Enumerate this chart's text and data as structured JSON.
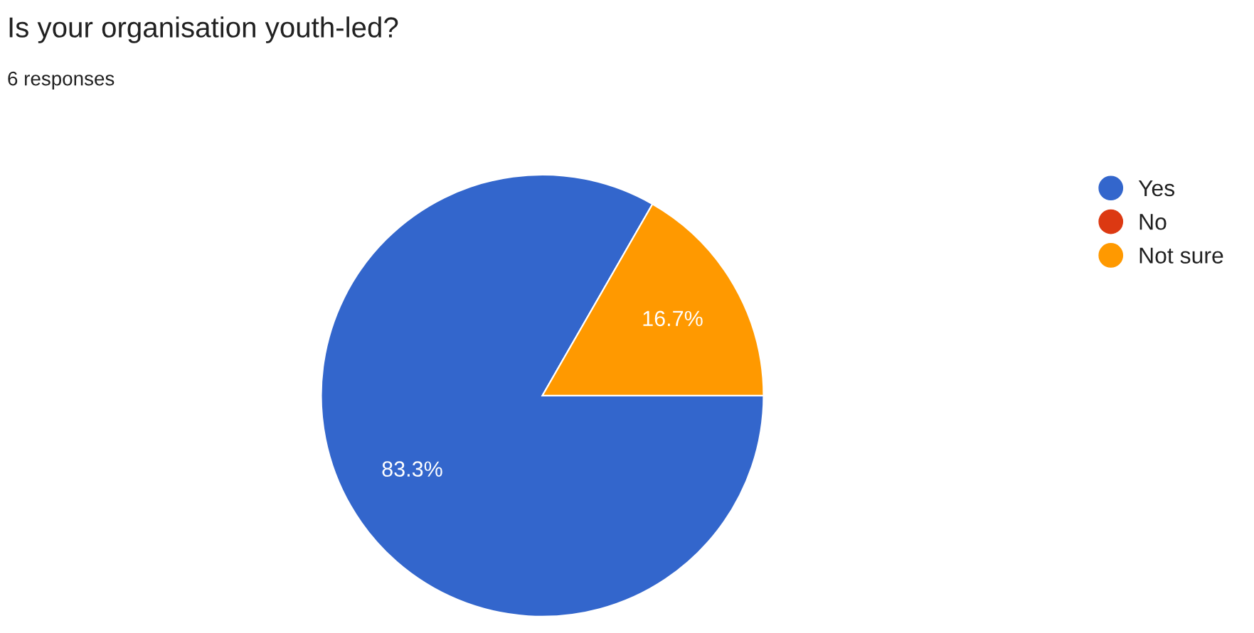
{
  "chart_data": {
    "type": "pie",
    "title": "Is your organisation youth-led?",
    "subtitle": "6 responses",
    "categories": [
      "Yes",
      "No",
      "Not sure"
    ],
    "values": [
      83.3,
      0,
      16.7
    ],
    "colors": [
      "#3366cc",
      "#dc3912",
      "#ff9900"
    ],
    "value_labels": [
      "83.3%",
      null,
      "16.7%"
    ],
    "legend": "right"
  }
}
